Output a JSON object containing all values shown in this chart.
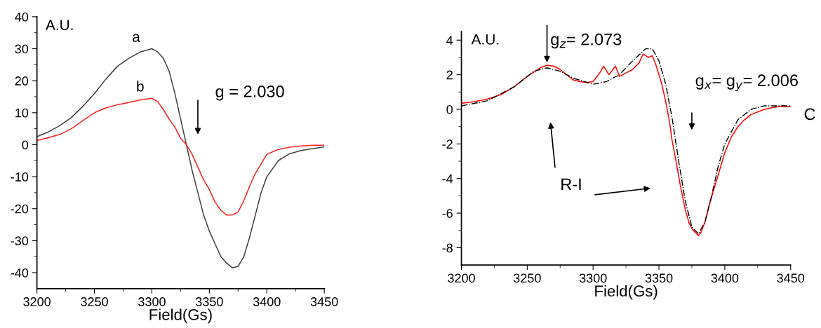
{
  "chart_data": [
    {
      "type": "line",
      "xlabel": "Field(Gs)",
      "ylabel": "A.U.",
      "xlim": [
        3200,
        3450
      ],
      "xticks": [
        3200,
        3250,
        3300,
        3350,
        3400,
        3450
      ],
      "ylim": [
        -45,
        40
      ],
      "yticks": [
        -40,
        -30,
        -20,
        -10,
        0,
        10,
        20,
        30,
        40
      ],
      "grid": false,
      "legend": false,
      "x": [
        3200,
        3210,
        3220,
        3230,
        3240,
        3250,
        3260,
        3270,
        3280,
        3290,
        3300,
        3305,
        3310,
        3315,
        3320,
        3325,
        3330,
        3335,
        3340,
        3345,
        3350,
        3355,
        3360,
        3365,
        3370,
        3375,
        3380,
        3385,
        3390,
        3395,
        3400,
        3410,
        3420,
        3430,
        3440,
        3450
      ],
      "series": [
        {
          "name": "a",
          "color": "#404040",
          "values": [
            2.5,
            4,
            6,
            8.5,
            12,
            16,
            20.5,
            24.5,
            27,
            29,
            30,
            29,
            27,
            23,
            16,
            8,
            0,
            -8,
            -15,
            -22,
            -27,
            -31,
            -35,
            -37,
            -38.5,
            -38,
            -35,
            -29,
            -22,
            -15,
            -10,
            -5,
            -2.8,
            -1.8,
            -1.2,
            -0.7
          ]
        },
        {
          "name": "b",
          "color": "#ff2020",
          "values": [
            1.3,
            2.2,
            3.2,
            5,
            7.5,
            10,
            11.5,
            12.5,
            13.2,
            14,
            14.5,
            13.5,
            11,
            8,
            5.5,
            2,
            0,
            -3,
            -7,
            -11,
            -14,
            -18,
            -20.5,
            -22,
            -22,
            -21,
            -17.5,
            -13,
            -9,
            -6,
            -3,
            -1.5,
            -0.8,
            -0.4,
            -0.2,
            -0.2
          ]
        }
      ],
      "annotations": [
        "g = 2.030"
      ]
    },
    {
      "type": "line",
      "xlabel": "Field(Gs)",
      "ylabel": "A.U.",
      "xlim": [
        3200,
        3450
      ],
      "xticks": [
        3200,
        3250,
        3300,
        3350,
        3400,
        3450
      ],
      "ylim": [
        -9,
        4.5
      ],
      "yticks": [
        -8,
        -6,
        -4,
        -2,
        0,
        2,
        4
      ],
      "grid": false,
      "legend": false,
      "series": [
        {
          "color": "#ff0000",
          "line_style": "solid",
          "x": [
            3200,
            3210,
            3220,
            3230,
            3240,
            3250,
            3260,
            3265,
            3270,
            3275,
            3280,
            3285,
            3290,
            3295,
            3300,
            3305,
            3308,
            3312,
            3317,
            3320,
            3325,
            3330,
            3335,
            3338,
            3342,
            3345,
            3348,
            3352,
            3355,
            3358,
            3360,
            3363,
            3366,
            3370,
            3373,
            3376,
            3380,
            3382,
            3385,
            3388,
            3391,
            3395,
            3400,
            3405,
            3410,
            3415,
            3420,
            3430,
            3440,
            3450
          ],
          "values": [
            0.35,
            0.45,
            0.6,
            0.85,
            1.3,
            1.9,
            2.4,
            2.55,
            2.5,
            2.3,
            2.0,
            1.7,
            1.6,
            1.55,
            1.6,
            2.1,
            2.5,
            2.0,
            2.5,
            1.9,
            2.1,
            2.3,
            2.7,
            3.2,
            3.0,
            3.1,
            2.5,
            1.5,
            0.5,
            -0.7,
            -1.8,
            -3.0,
            -4.3,
            -5.8,
            -6.6,
            -7.0,
            -7.3,
            -7.1,
            -6.5,
            -5.6,
            -4.8,
            -3.8,
            -2.5,
            -1.6,
            -1.0,
            -0.6,
            -0.3,
            0.0,
            0.15,
            0.15
          ]
        },
        {
          "color": "#000000",
          "line_style": "dashdot",
          "x": [
            3200,
            3220,
            3240,
            3255,
            3265,
            3275,
            3285,
            3300,
            3310,
            3320,
            3330,
            3340,
            3345,
            3350,
            3355,
            3360,
            3365,
            3370,
            3375,
            3380,
            3385,
            3390,
            3395,
            3400,
            3410,
            3420,
            3430,
            3450
          ],
          "values": [
            0.2,
            0.5,
            1.3,
            2.2,
            2.4,
            2.2,
            1.8,
            1.45,
            1.6,
            2.0,
            2.8,
            3.5,
            3.5,
            2.8,
            1.5,
            -0.5,
            -3.0,
            -5.3,
            -6.8,
            -7.2,
            -6.5,
            -5.0,
            -3.3,
            -2.0,
            -0.6,
            0.0,
            0.2,
            0.2
          ]
        }
      ],
      "annotations": [
        {
          "text": "g$_{z}$= 2.073",
          "x": 3265,
          "y": 2.6
        },
        "g$_{x}$= g$_{y}$= 2.006",
        "R-I",
        "C"
      ]
    }
  ]
}
